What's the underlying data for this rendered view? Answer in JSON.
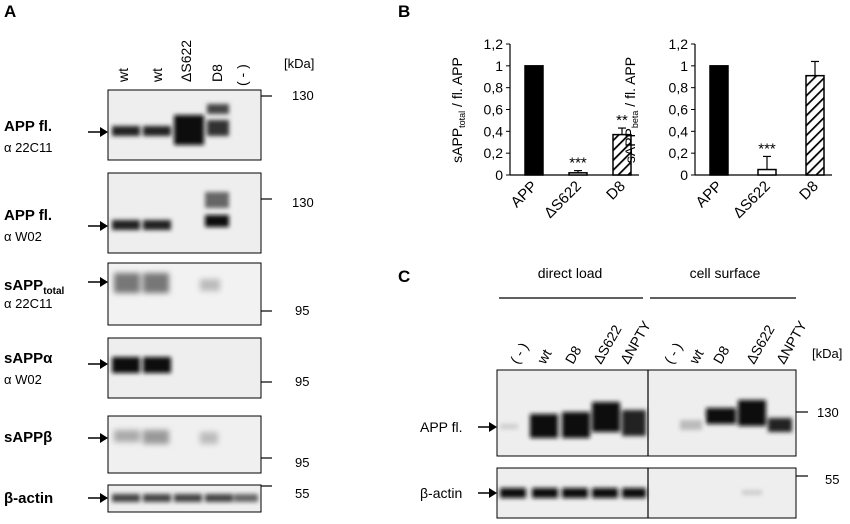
{
  "panelA": {
    "label": "A",
    "lanes": [
      "wt",
      "wt",
      "ΔS622",
      "D8",
      "( - )"
    ],
    "kda_header": "[kDa]",
    "blots": [
      {
        "name": "APP fl.",
        "antibody": "α 22C11",
        "marker": "130"
      },
      {
        "name": "APP fl.",
        "antibody": "α W02",
        "marker": "130"
      },
      {
        "name_main": "sAPP",
        "name_sub": "total",
        "antibody": "α 22C11",
        "marker": "95"
      },
      {
        "name": "sAPPα",
        "antibody": "α W02",
        "marker": "95"
      },
      {
        "name": "sAPPβ",
        "antibody": "",
        "marker": "95"
      },
      {
        "name": "β-actin",
        "antibody": "",
        "marker": "55"
      }
    ]
  },
  "panelB": {
    "label": "B",
    "chart1": {
      "ylabel_main": "sAPP",
      "ylabel_sub": "total",
      "ylabel_rest": " / fl. APP",
      "yticks": [
        "0",
        "0,2",
        "0,4",
        "0,6",
        "0,8",
        "1",
        "1,2"
      ],
      "sig": [
        "***",
        "**"
      ]
    },
    "chart2": {
      "ylabel_main": "sAPP",
      "ylabel_sub": "beta",
      "ylabel_rest": " / fl. APP",
      "yticks": [
        "0",
        "0,2",
        "0,4",
        "0,6",
        "0,8",
        "1",
        "1,2"
      ],
      "sig": [
        "***"
      ]
    }
  },
  "chart_data": [
    {
      "type": "bar",
      "categories": [
        "APP",
        "ΔS622",
        "D8"
      ],
      "values": [
        1.0,
        0.02,
        0.37
      ],
      "errors": [
        0.0,
        0.02,
        0.06
      ],
      "ylim": [
        0,
        1.2
      ],
      "ylabel": "sAPPtotal / fl. APP",
      "fills": [
        "solid-black",
        "white",
        "diagonal-hatch"
      ]
    },
    {
      "type": "bar",
      "categories": [
        "APP",
        "ΔS622",
        "D8"
      ],
      "values": [
        1.0,
        0.05,
        0.91
      ],
      "errors": [
        0.0,
        0.12,
        0.13
      ],
      "ylim": [
        0,
        1.2
      ],
      "ylabel": "sAPPbeta / fl. APP",
      "fills": [
        "solid-black",
        "white",
        "diagonal-hatch"
      ]
    }
  ],
  "panelC": {
    "label": "C",
    "group1": "direct load",
    "group2": "cell surface",
    "lanes1": [
      "( - )",
      "wt",
      "D8",
      "ΔS622",
      "ΔNPTY"
    ],
    "lanes2": [
      "( - )",
      "wt",
      "D8",
      "ΔS622",
      "ΔNPTY"
    ],
    "kda_header": "[kDa]",
    "blot1_label": "APP fl.",
    "blot1_marker": "130",
    "blot2_label": "β-actin",
    "blot2_marker": "55"
  },
  "colors": {
    "bar_solid": "#000000",
    "blot_bg": "#eeeeee",
    "band": "#1a1a1a"
  }
}
